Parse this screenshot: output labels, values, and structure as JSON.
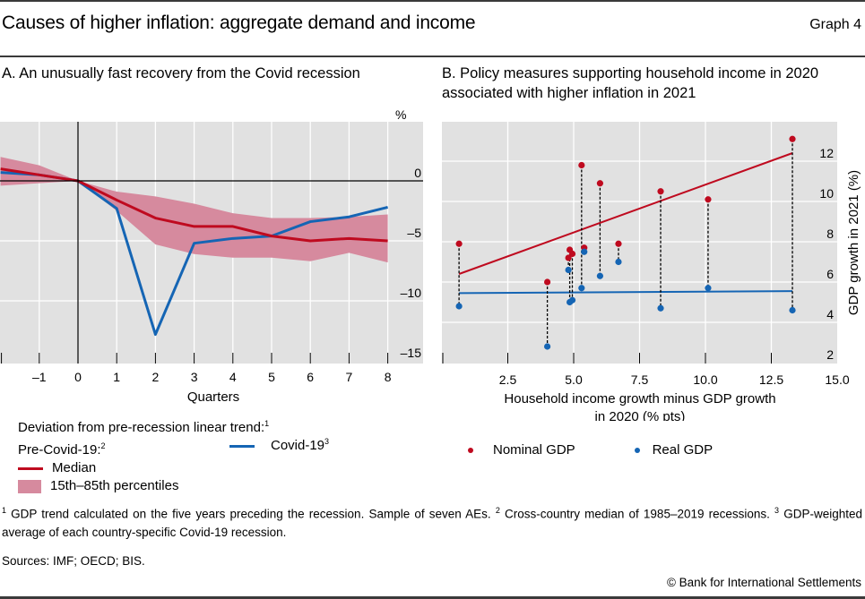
{
  "header": {
    "title": "Causes of higher inflation: aggregate demand and income",
    "graph_number": "Graph 4"
  },
  "colors": {
    "median": "#bf0a1f",
    "band": "#d68a9e",
    "covid": "#1565b4",
    "nominal": "#bf0a1f",
    "real": "#1565b4",
    "panel_bg": "#e1e1e1"
  },
  "chart_data": [
    {
      "id": "A",
      "type": "line",
      "title": "A. An unusually fast recovery from the Covid recession",
      "xlabel": "Quarters",
      "ylabel": "%",
      "x": [
        -2,
        -1,
        0,
        1,
        2,
        3,
        4,
        5,
        6,
        7,
        8
      ],
      "xlim": [
        -2,
        8.9
      ],
      "ylim": [
        -15,
        3.5
      ],
      "xticks": [
        -1,
        0,
        1,
        2,
        3,
        4,
        5,
        6,
        7,
        8
      ],
      "xtick_labels": [
        "–1",
        "0",
        "1",
        "2",
        "3",
        "4",
        "5",
        "6",
        "7",
        "8"
      ],
      "yticks": [
        0,
        -5,
        -10,
        -15
      ],
      "ytick_labels": [
        "0",
        "–5",
        "–10",
        "–15"
      ],
      "grid": true,
      "band": {
        "name": "15th–85th percentiles",
        "upper": [
          2.0,
          1.3,
          0,
          -0.9,
          -1.3,
          -1.9,
          -2.7,
          -3.1,
          -3.1,
          -3.0,
          -2.8
        ],
        "lower": [
          -0.4,
          -0.2,
          0,
          -2.5,
          -5.3,
          -6.1,
          -6.4,
          -6.4,
          -6.7,
          -6.0,
          -6.8
        ]
      },
      "series": [
        {
          "name": "Median",
          "values": [
            1.0,
            0.5,
            0,
            -1.6,
            -3.1,
            -3.8,
            -3.8,
            -4.6,
            -5.0,
            -4.8,
            -5.0
          ]
        },
        {
          "name": "Covid-19",
          "values": [
            0.7,
            0.5,
            0,
            -2.3,
            -12.8,
            -5.2,
            -4.8,
            -4.6,
            -3.4,
            -3.0,
            -2.2
          ]
        }
      ],
      "legend": {
        "heading": "Deviation from pre-recession linear trend:",
        "heading_sup": "1",
        "group": "Pre-Covid-19:",
        "group_sup": "2",
        "median": "Median",
        "band": "15th–85th percentiles",
        "covid": "Covid-19",
        "covid_sup": "3"
      }
    },
    {
      "id": "B",
      "type": "scatter",
      "title_line1": "B. Policy measures supporting household income in 2020",
      "title_line2": "associated with higher inflation in 2021",
      "xlabel_line1": "Household income growth minus GDP growth",
      "xlabel_line2": "in 2020 (% pts)",
      "ylabel": "GDP growth in 2021 (%)",
      "xlim": [
        0,
        15.3
      ],
      "ylim": [
        1.5,
        14
      ],
      "xticks": [
        2.5,
        5.0,
        7.5,
        10.0,
        12.5,
        15.0
      ],
      "xtick_labels": [
        "2.5",
        "5.0",
        "7.5",
        "10.0",
        "12.5",
        "15.0"
      ],
      "yticks": [
        2,
        4,
        6,
        8,
        10,
        12
      ],
      "ytick_labels": [
        "2",
        "4",
        "6",
        "8",
        "10",
        "12"
      ],
      "grid": true,
      "points": [
        {
          "x": 0.65,
          "nominal": 7.9,
          "real": 4.8
        },
        {
          "x": 4.0,
          "nominal": 6.0,
          "real": 2.8
        },
        {
          "x": 4.8,
          "nominal": 7.2,
          "real": 6.6
        },
        {
          "x": 4.85,
          "nominal": 7.6,
          "real": 5.0
        },
        {
          "x": 4.95,
          "nominal": 7.4,
          "real": 5.1
        },
        {
          "x": 5.3,
          "nominal": 11.8,
          "real": 5.7
        },
        {
          "x": 5.4,
          "nominal": 7.7,
          "real": 7.5
        },
        {
          "x": 6.0,
          "nominal": 10.9,
          "real": 6.3
        },
        {
          "x": 6.7,
          "nominal": 7.9,
          "real": 7.0
        },
        {
          "x": 8.3,
          "nominal": 10.5,
          "real": 4.7
        },
        {
          "x": 10.1,
          "nominal": 10.1,
          "real": 5.7
        },
        {
          "x": 13.3,
          "nominal": 13.1,
          "real": 4.6
        }
      ],
      "fit_lines": [
        {
          "name": "Nominal GDP fit",
          "x": [
            0.65,
            13.3
          ],
          "y": [
            6.4,
            12.4
          ]
        },
        {
          "name": "Real GDP fit",
          "x": [
            0.65,
            13.3
          ],
          "y": [
            5.45,
            5.55
          ]
        }
      ],
      "legend": {
        "nominal": "Nominal GDP",
        "real": "Real GDP"
      }
    }
  ],
  "footnotes": {
    "n1_mark": "1",
    "n1": " GDP trend calculated on the five years preceding the recession. Sample of seven AEs. ",
    "n2_mark": "2",
    "n2": " Cross-country median of 1985–2019 recessions. ",
    "n3_mark": "3",
    "n3": " GDP-weighted average of each country-specific Covid-19 recession."
  },
  "sources": "Sources: IMF; OECD; BIS.",
  "copyright": "© Bank for International Settlements"
}
